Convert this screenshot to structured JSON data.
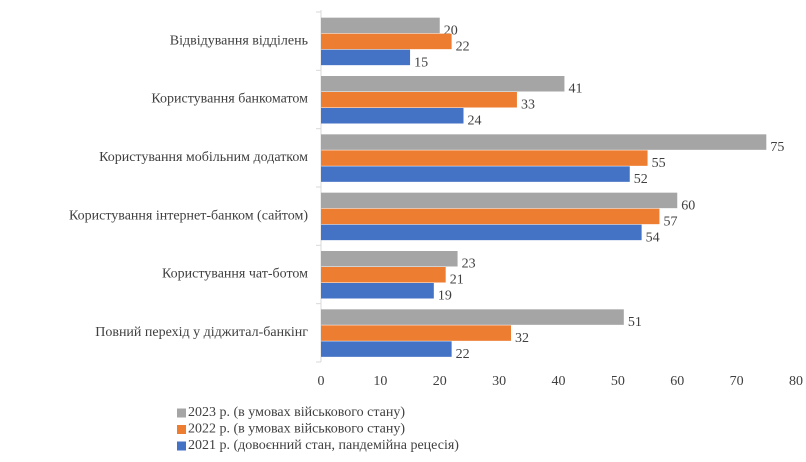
{
  "chart_data": {
    "type": "barh",
    "categories": [
      "Відвідування відділень",
      "Користування банкоматом",
      "Користування мобільним додатком",
      "Користування інтернет-банком (сайтом)",
      "Користування чат-ботом",
      "Повний перехід у діджитал-банкінг"
    ],
    "series": [
      {
        "name": "2023 р. (в умовах військового стану)",
        "color": "#a5a5a5",
        "values": [
          20,
          41,
          75,
          60,
          23,
          51
        ]
      },
      {
        "name": "2022 р. (в умовах військового стану)",
        "color": "#ed7d31",
        "values": [
          22,
          33,
          55,
          57,
          21,
          32
        ]
      },
      {
        "name": "2021 р. (довоєнний стан, пандемійна рецесія)",
        "color": "#4472c4",
        "values": [
          15,
          24,
          52,
          54,
          19,
          22
        ]
      }
    ],
    "xlim": [
      0,
      80
    ],
    "xticks": [
      0,
      10,
      20,
      30,
      40,
      50,
      60,
      70,
      80
    ],
    "legend": "bottom"
  }
}
